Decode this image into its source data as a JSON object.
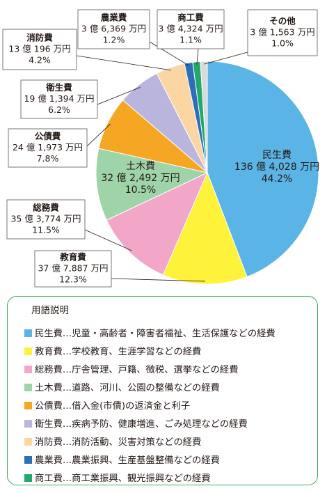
{
  "chart_data": {
    "type": "pie",
    "categories": [
      "民生費",
      "教育費",
      "総務費",
      "土木費",
      "公債費",
      "衛生費",
      "消防費",
      "農業費",
      "商工費",
      "その他"
    ],
    "amounts": [
      "136 億 4,028 万円",
      "37 億 7,887 万円",
      "35 億 3,774 万円",
      "32 億 2,492 万円",
      "24 億 1,973 万円",
      "19 億 1,394 万円",
      "13 億 196 万円",
      "3 億 6,369 万円",
      "3 億 4,324 万円",
      "3 億 1,563 万円"
    ],
    "values": [
      44.2,
      12.3,
      11.5,
      10.5,
      7.8,
      6.2,
      4.2,
      1.2,
      1.1,
      1.0
    ],
    "value_labels": [
      "44.2%",
      "12.3%",
      "11.5%",
      "10.5%",
      "7.8%",
      "6.2%",
      "4.2%",
      "1.2%",
      "1.1%",
      "1.0%"
    ],
    "colors": [
      "#5ab4e5",
      "#fff23a",
      "#f2a7c9",
      "#9fd4a8",
      "#f5a623",
      "#b9b5dc",
      "#fbd6a3",
      "#2a6fb8",
      "#22a86b",
      "#d9d9d9"
    ]
  },
  "glossary": {
    "title": "用語説明",
    "items": [
      "民生費…児童・高齢者・障害者福祉、生活保護などの経費",
      "教育費…学校教育、生涯学習などの経費",
      "総務費…庁舎管理、戸籍、徴税、選挙などの経費",
      "土木費…道路、河川、公園の整備などの経費",
      "公債費…借入金(市債)の返済金と利子",
      "衛生費…疾病予防、健康増進、ごみ処理などの経費",
      "消防費…消防活動、災害対策などの経費",
      "農業費…農業振興、生産基盤整備などの経費",
      "商工費…商工業振興、観光振興などの経費"
    ]
  }
}
